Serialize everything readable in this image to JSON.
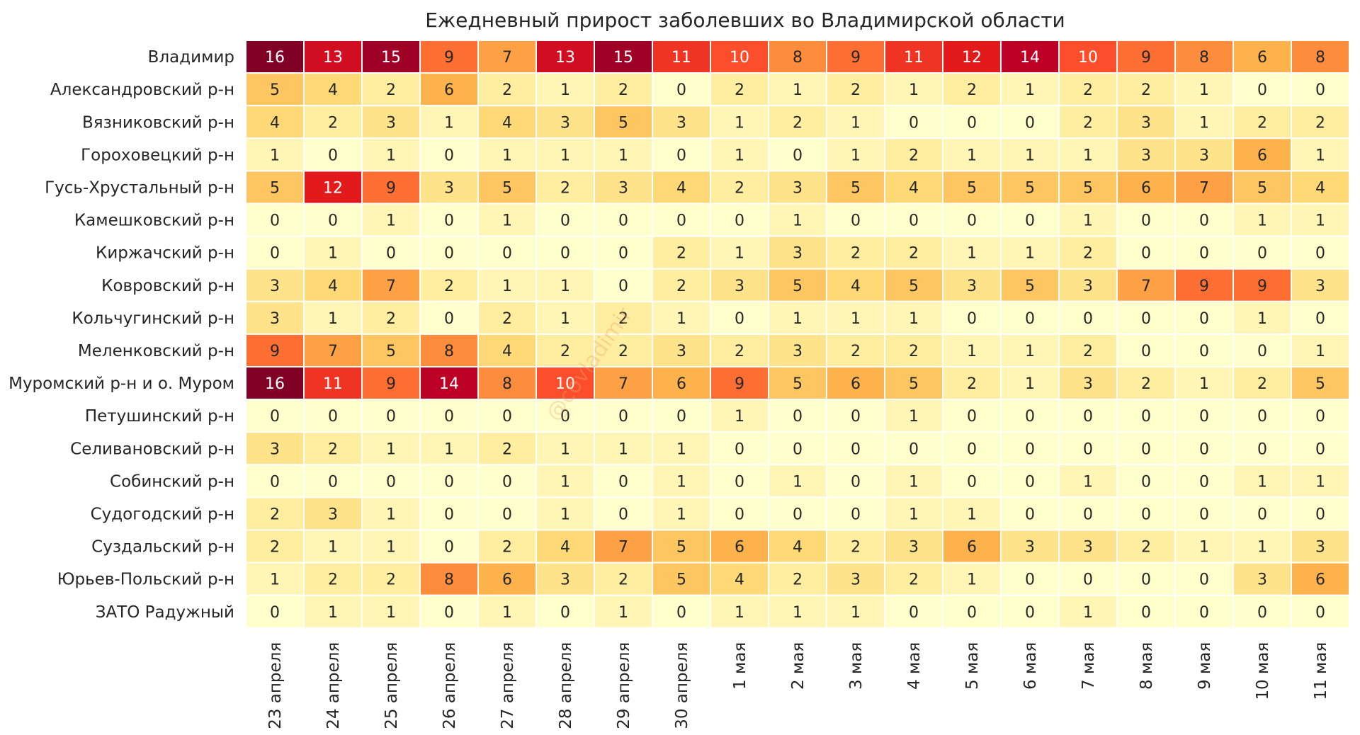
{
  "chart_data": {
    "type": "heatmap",
    "title": "Ежедневный прирост заболевших во Владимирской области",
    "watermark": "@covladimir",
    "rows": [
      "Владимир",
      "Александровский р-н",
      "Вязниковский р-н",
      "Гороховецкий р-н",
      "Гусь-Хрустальный р-н",
      "Камешковский р-н",
      "Киржачский р-н",
      "Ковровский р-н",
      "Кольчугинский р-н",
      "Меленковский р-н",
      "Муромский р-н и о. Муром",
      "Петушинский р-н",
      "Селивановский р-н",
      "Собинский р-н",
      "Судогодский р-н",
      "Суздальский р-н",
      "Юрьев-Польский р-н",
      "ЗАТО Радужный"
    ],
    "columns": [
      "23 апреля",
      "24 апреля",
      "25 апреля",
      "26 апреля",
      "27 апреля",
      "28 апреля",
      "29 апреля",
      "30 апреля",
      "1 мая",
      "2 мая",
      "3 мая",
      "4 мая",
      "5 мая",
      "6 мая",
      "7 мая",
      "8 мая",
      "9 мая",
      "10 мая",
      "11 мая"
    ],
    "values": [
      [
        16,
        13,
        15,
        9,
        7,
        13,
        15,
        11,
        10,
        8,
        9,
        11,
        12,
        14,
        10,
        9,
        8,
        6,
        8
      ],
      [
        5,
        4,
        2,
        6,
        2,
        1,
        2,
        0,
        2,
        1,
        2,
        1,
        2,
        1,
        2,
        2,
        1,
        0,
        0
      ],
      [
        4,
        2,
        3,
        1,
        4,
        3,
        5,
        3,
        1,
        2,
        1,
        0,
        0,
        0,
        2,
        3,
        1,
        2,
        2
      ],
      [
        1,
        0,
        1,
        0,
        1,
        1,
        1,
        0,
        1,
        0,
        1,
        2,
        1,
        1,
        1,
        3,
        3,
        6,
        1
      ],
      [
        5,
        12,
        9,
        3,
        5,
        2,
        3,
        4,
        2,
        3,
        5,
        4,
        5,
        5,
        5,
        6,
        7,
        5,
        4
      ],
      [
        0,
        0,
        1,
        0,
        1,
        0,
        0,
        0,
        0,
        1,
        0,
        0,
        0,
        0,
        1,
        0,
        0,
        1,
        1
      ],
      [
        0,
        1,
        0,
        0,
        0,
        0,
        0,
        2,
        1,
        3,
        2,
        2,
        1,
        1,
        2,
        0,
        0,
        0,
        0
      ],
      [
        3,
        4,
        7,
        2,
        1,
        1,
        0,
        2,
        3,
        5,
        4,
        5,
        3,
        5,
        3,
        7,
        9,
        9,
        3
      ],
      [
        3,
        1,
        2,
        0,
        2,
        1,
        2,
        1,
        0,
        1,
        1,
        1,
        0,
        0,
        0,
        0,
        0,
        1,
        0
      ],
      [
        9,
        7,
        5,
        8,
        4,
        2,
        2,
        3,
        2,
        3,
        2,
        2,
        1,
        1,
        2,
        0,
        0,
        0,
        1
      ],
      [
        16,
        11,
        9,
        14,
        8,
        10,
        7,
        6,
        9,
        5,
        6,
        5,
        2,
        1,
        3,
        2,
        1,
        2,
        5
      ],
      [
        0,
        0,
        0,
        0,
        0,
        0,
        0,
        0,
        1,
        0,
        0,
        1,
        0,
        0,
        0,
        0,
        0,
        0,
        0
      ],
      [
        3,
        2,
        1,
        1,
        2,
        1,
        1,
        1,
        0,
        0,
        0,
        0,
        0,
        0,
        0,
        0,
        0,
        0,
        0
      ],
      [
        0,
        0,
        0,
        0,
        0,
        1,
        0,
        1,
        0,
        1,
        0,
        1,
        0,
        0,
        1,
        0,
        0,
        1,
        1
      ],
      [
        2,
        3,
        1,
        0,
        0,
        1,
        0,
        1,
        0,
        0,
        0,
        1,
        1,
        0,
        0,
        0,
        0,
        0,
        0
      ],
      [
        2,
        1,
        1,
        0,
        2,
        4,
        7,
        5,
        6,
        4,
        2,
        3,
        6,
        3,
        3,
        2,
        1,
        1,
        3
      ],
      [
        1,
        2,
        2,
        8,
        6,
        3,
        2,
        5,
        4,
        2,
        3,
        2,
        1,
        0,
        0,
        0,
        0,
        3,
        6
      ],
      [
        0,
        1,
        1,
        0,
        1,
        0,
        1,
        0,
        1,
        1,
        1,
        0,
        0,
        0,
        1,
        0,
        0,
        0,
        0
      ]
    ],
    "color_range": [
      0,
      16
    ],
    "colormap_stops": [
      "#ffffcc",
      "#ffeda0",
      "#fed976",
      "#feb24c",
      "#fd8d3c",
      "#fc4e2a",
      "#e31a1c",
      "#bd0026",
      "#800026"
    ],
    "text_color_dark": "#262626",
    "text_color_light": "#ffffff"
  }
}
